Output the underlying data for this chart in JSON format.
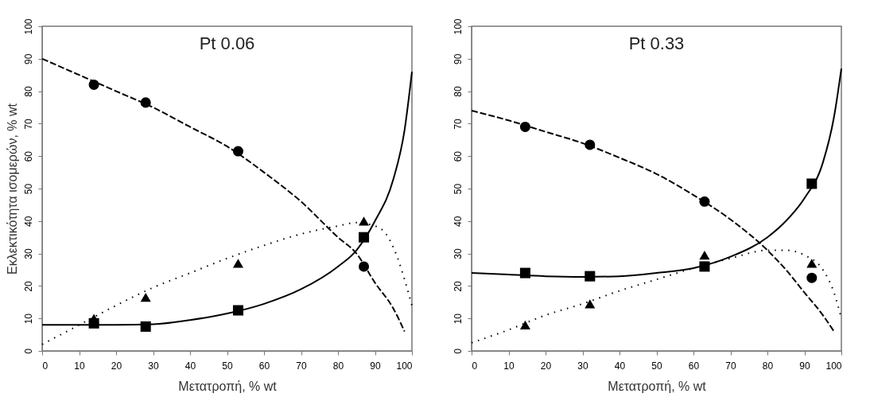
{
  "chart_data": [
    {
      "type": "scatter",
      "title": "Pt 0.06",
      "xlabel": "Μετατροπή, % wt",
      "ylabel": "Εκλεκτικότητα ισομερών, % wt",
      "xlim": [
        0,
        100
      ],
      "ylim": [
        0,
        100
      ],
      "xticks": [
        0,
        10,
        20,
        30,
        40,
        50,
        60,
        70,
        80,
        90,
        100
      ],
      "yticks": [
        0,
        10,
        20,
        30,
        40,
        50,
        60,
        70,
        80,
        90,
        100
      ],
      "grid": false,
      "x": [
        14,
        28,
        53,
        87
      ],
      "series": [
        {
          "marker": "circle",
          "color": "#000000",
          "values": [
            82,
            76.5,
            61.5,
            26
          ]
        },
        {
          "marker": "triangle",
          "color": "#000000",
          "values": [
            10,
            16.5,
            27,
            40
          ]
        },
        {
          "marker": "square",
          "color": "#000000",
          "values": [
            8.5,
            7.5,
            12.5,
            35
          ]
        },
        {
          "type": "line",
          "marker": "none",
          "line_style": "dashed",
          "color": "#000000",
          "x": [
            0,
            10,
            20,
            30,
            40,
            50,
            60,
            70,
            80,
            85,
            90,
            95,
            98
          ],
          "values": [
            90,
            85,
            80,
            75,
            69,
            63,
            55,
            46,
            35,
            30,
            21,
            13,
            6
          ]
        },
        {
          "type": "line",
          "marker": "none",
          "line_style": "dotted",
          "color": "#000000",
          "x": [
            0,
            10,
            20,
            30,
            40,
            50,
            60,
            70,
            80,
            85,
            90,
            93,
            96,
            98,
            100
          ],
          "values": [
            2,
            8,
            14,
            19.5,
            24,
            28.5,
            32.5,
            36,
            38.5,
            39.5,
            38.5,
            36,
            29,
            22,
            14
          ]
        },
        {
          "type": "line",
          "marker": "none",
          "line_style": "solid",
          "color": "#000000",
          "x": [
            0,
            10,
            20,
            30,
            40,
            50,
            60,
            70,
            80,
            85,
            90,
            95,
            98,
            100
          ],
          "values": [
            8,
            8,
            8,
            8.2,
            9.5,
            11.5,
            14.5,
            19,
            26,
            31,
            40,
            53,
            68,
            86
          ]
        }
      ]
    },
    {
      "type": "scatter",
      "title": "Pt 0.33",
      "xlabel": "Μετατροπή, % wt",
      "xlim": [
        0,
        100
      ],
      "ylim": [
        0,
        100
      ],
      "xticks": [
        0,
        10,
        20,
        30,
        40,
        50,
        60,
        70,
        80,
        90,
        100
      ],
      "yticks": [
        0,
        10,
        20,
        30,
        40,
        50,
        60,
        70,
        80,
        90,
        100
      ],
      "grid": false,
      "x": [
        14.5,
        32,
        63,
        92
      ],
      "series": [
        {
          "marker": "circle",
          "color": "#000000",
          "values": [
            69,
            63.5,
            46,
            22.5
          ]
        },
        {
          "marker": "triangle",
          "color": "#000000",
          "values": [
            8,
            14.5,
            29.5,
            27
          ]
        },
        {
          "marker": "square",
          "color": "#000000",
          "values": [
            24,
            23,
            26,
            51.5
          ]
        },
        {
          "type": "line",
          "marker": "none",
          "line_style": "dashed",
          "color": "#000000",
          "x": [
            0,
            10,
            20,
            30,
            40,
            50,
            60,
            70,
            80,
            85,
            90,
            95,
            98
          ],
          "values": [
            74,
            71,
            67.5,
            64,
            59.5,
            54.5,
            48,
            40.5,
            31,
            25,
            18,
            11,
            6
          ]
        },
        {
          "type": "line",
          "marker": "none",
          "line_style": "dotted",
          "color": "#000000",
          "x": [
            0,
            10,
            20,
            30,
            40,
            50,
            60,
            70,
            80,
            85,
            90,
            95,
            98,
            100
          ],
          "values": [
            2.5,
            6.5,
            11,
            14.5,
            18.5,
            22,
            25.5,
            28.5,
            31,
            31,
            29.5,
            25,
            18,
            10
          ]
        },
        {
          "type": "line",
          "marker": "none",
          "line_style": "solid",
          "color": "#000000",
          "x": [
            0,
            10,
            20,
            30,
            40,
            50,
            60,
            70,
            80,
            85,
            90,
            95,
            98,
            100
          ],
          "values": [
            24,
            23.5,
            23,
            22.8,
            23,
            24,
            25.5,
            29,
            35,
            40,
            47,
            58,
            72,
            87
          ]
        }
      ]
    }
  ]
}
